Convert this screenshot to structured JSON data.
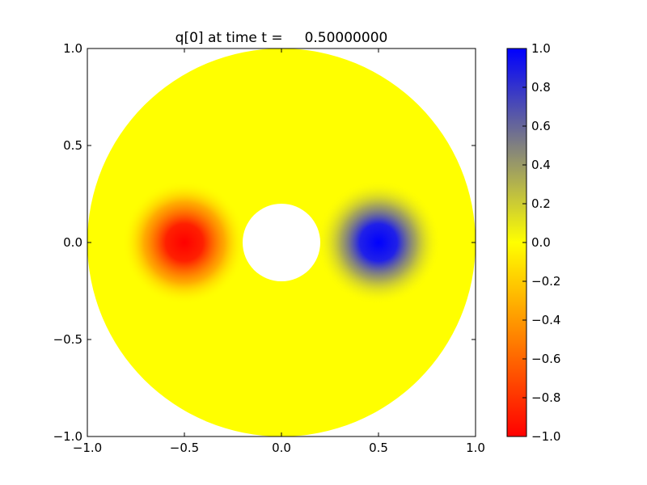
{
  "chart_data": {
    "type": "heatmap",
    "title": "q[0] at time t =     0.50000000",
    "xlabel": "",
    "ylabel": "",
    "xlim": [
      -1.0,
      1.0
    ],
    "ylim": [
      -1.0,
      1.0
    ],
    "x_ticks": [
      -1.0,
      -0.5,
      0.0,
      0.5,
      1.0
    ],
    "y_ticks": [
      -1.0,
      -0.5,
      0.0,
      0.5,
      1.0
    ],
    "x_tick_labels": [
      "−1.0",
      "−0.5",
      "0.0",
      "0.5",
      "1.0"
    ],
    "y_tick_labels": [
      "−1.0",
      "−0.5",
      "0.0",
      "0.5",
      "1.0"
    ],
    "domain": {
      "shape": "annulus",
      "inner_radius": 0.2,
      "outer_radius": 1.0,
      "center": [
        0.0,
        0.0
      ]
    },
    "features": [
      {
        "name": "blue-blob",
        "center": [
          0.5,
          0.0
        ],
        "peak_value": 1.0
      },
      {
        "name": "red-blob",
        "center": [
          -0.5,
          0.0
        ],
        "peak_value": -1.0
      }
    ],
    "background_value": 0.0,
    "grid": false,
    "colorbar": {
      "range": [
        -1.0,
        1.0
      ],
      "ticks": [
        -1.0,
        -0.8,
        -0.6,
        -0.4,
        -0.2,
        0.0,
        0.2,
        0.4,
        0.6,
        0.8,
        1.0
      ],
      "tick_labels": [
        "−1.0",
        "−0.8",
        "−0.6",
        "−0.4",
        "−0.2",
        "0.0",
        "0.2",
        "0.4",
        "0.6",
        "0.8",
        "1.0"
      ],
      "placement": "right",
      "colors": [
        {
          "value": -1.0,
          "color": "#ff0000"
        },
        {
          "value": 0.0,
          "color": "#ffff00"
        },
        {
          "value": 0.5,
          "color": "#808080"
        },
        {
          "value": 1.0,
          "color": "#0000ff"
        }
      ]
    }
  }
}
